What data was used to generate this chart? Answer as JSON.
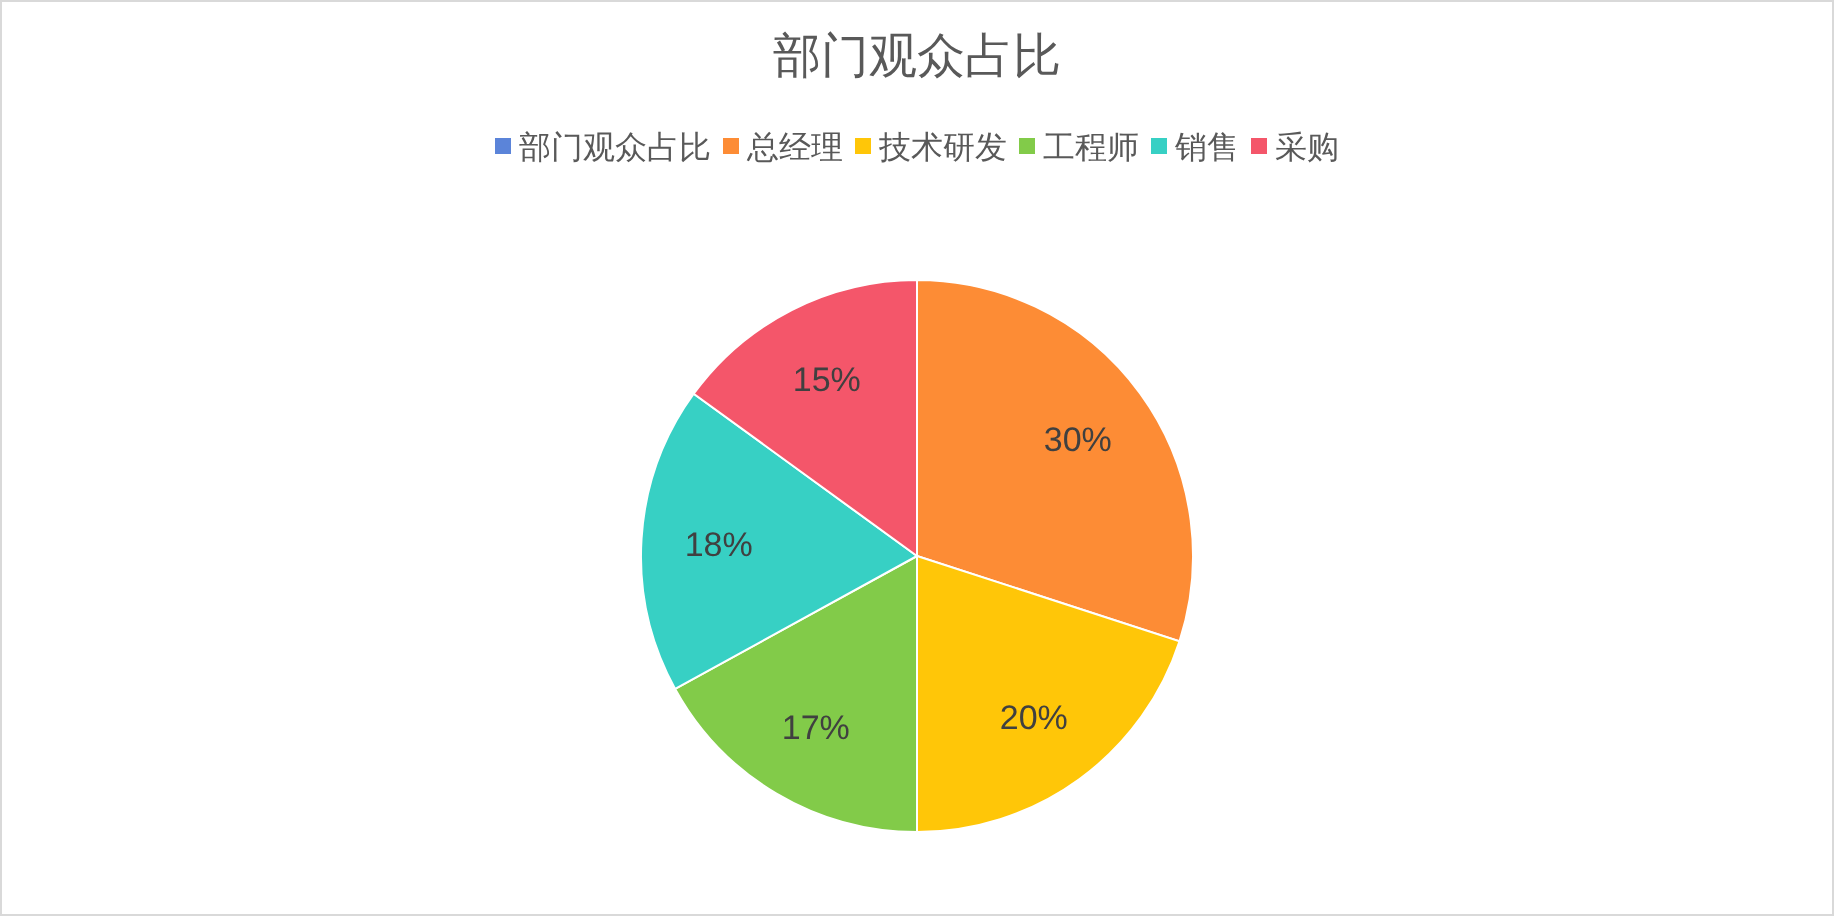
{
  "chart_data": {
    "type": "pie",
    "title": "部门观众占比",
    "categories": [
      "部门观众占比",
      "总经理",
      "技术研发",
      "工程师",
      "销售",
      "采购"
    ],
    "values": [
      null,
      30,
      20,
      17,
      18,
      15
    ],
    "colors": [
      "#5b84d9",
      "#fd8c35",
      "#ffc608",
      "#82cb49",
      "#37d0c4",
      "#f4566a"
    ],
    "value_labels": [
      null,
      "30%",
      "20%",
      "17%",
      "18%",
      "15%"
    ],
    "legend": "top"
  }
}
